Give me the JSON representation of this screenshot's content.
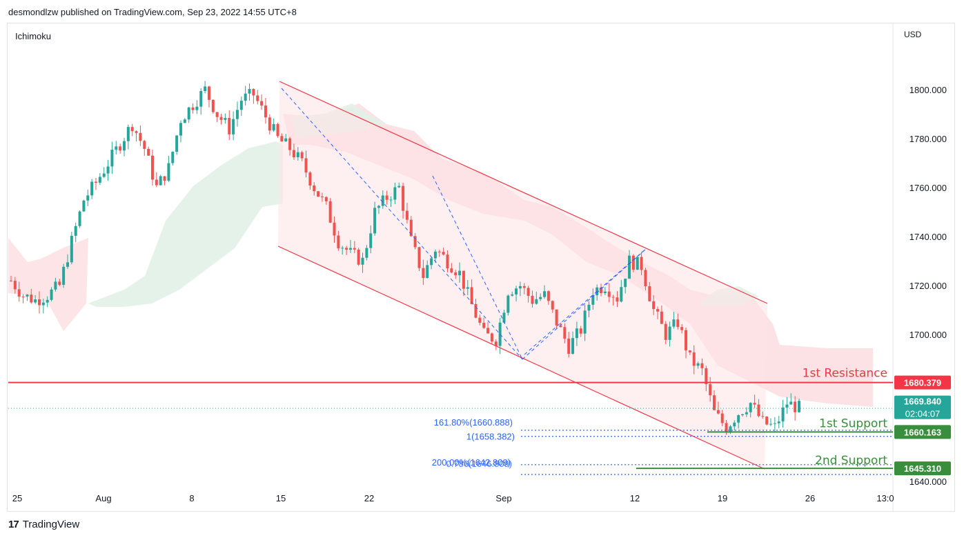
{
  "header": {
    "publisher": "desmondlzw published on TradingView.com, Sep 23, 2022 14:55 UTC+8"
  },
  "indicator_label": "Ichimoku",
  "currency": "USD",
  "footer": {
    "brand": "TradingView",
    "logo_glyph": "17"
  },
  "colors": {
    "up": "#26a69a",
    "down": "#ef5350",
    "resistance": "#f23645",
    "support": "#388e3c",
    "fib": "#2962ff",
    "channel_fill": "#fde4e6",
    "cloud_bull": "#e2f1e7",
    "cloud_bear": "#fcdde0"
  },
  "chart_data": {
    "type": "candlestick",
    "ylim": [
      1637,
      1812
    ],
    "y_ticks": [
      "1640.000",
      "1660.000",
      "1680.000",
      "1700.000",
      "1720.000",
      "1740.000",
      "1760.000",
      "1780.000",
      "1800.000"
    ],
    "x_ticks": [
      "25",
      "Aug",
      "8",
      "15",
      "22",
      "Sep",
      "12",
      "19",
      "26",
      "13:0"
    ],
    "price_tags": {
      "resistance": "1680.379",
      "last_price": "1669.840",
      "countdown": "02:04:07",
      "support1": "1660.163",
      "support2": "1645.310"
    },
    "annotations": {
      "resistance1": "1st Resistance",
      "support1": "1st Support",
      "support2": "2nd Support"
    },
    "fib_labels": {
      "ext_1618": "161.80%(1660.888)",
      "ext_1": "1(1658.382)",
      "ext_200": "200.00%(1642.809)",
      "ext_0786": "0.786(1646.809)"
    },
    "levels": {
      "resistance": 1680.379,
      "last_price": 1669.84,
      "support1": 1660.163,
      "support2": 1645.31,
      "fib_1618": 1660.888,
      "fib_1": 1658.382,
      "fib_200": 1642.809,
      "fib_0786": 1646.809
    },
    "close_series_approx": [
      1722,
      1716,
      1714,
      1716,
      1720,
      1738,
      1755,
      1762,
      1770,
      1778,
      1786,
      1776,
      1760,
      1768,
      1788,
      1794,
      1800,
      1790,
      1784,
      1796,
      1798,
      1789,
      1780,
      1776,
      1770,
      1760,
      1752,
      1738,
      1733,
      1730,
      1750,
      1756,
      1760,
      1738,
      1724,
      1735,
      1730,
      1725,
      1712,
      1700,
      1698,
      1718,
      1720,
      1714,
      1716,
      1705,
      1695,
      1702,
      1718,
      1720,
      1715,
      1730,
      1728,
      1710,
      1700,
      1705,
      1690,
      1685,
      1668,
      1662,
      1668,
      1672,
      1664,
      1662,
      1672,
      1670
    ]
  }
}
